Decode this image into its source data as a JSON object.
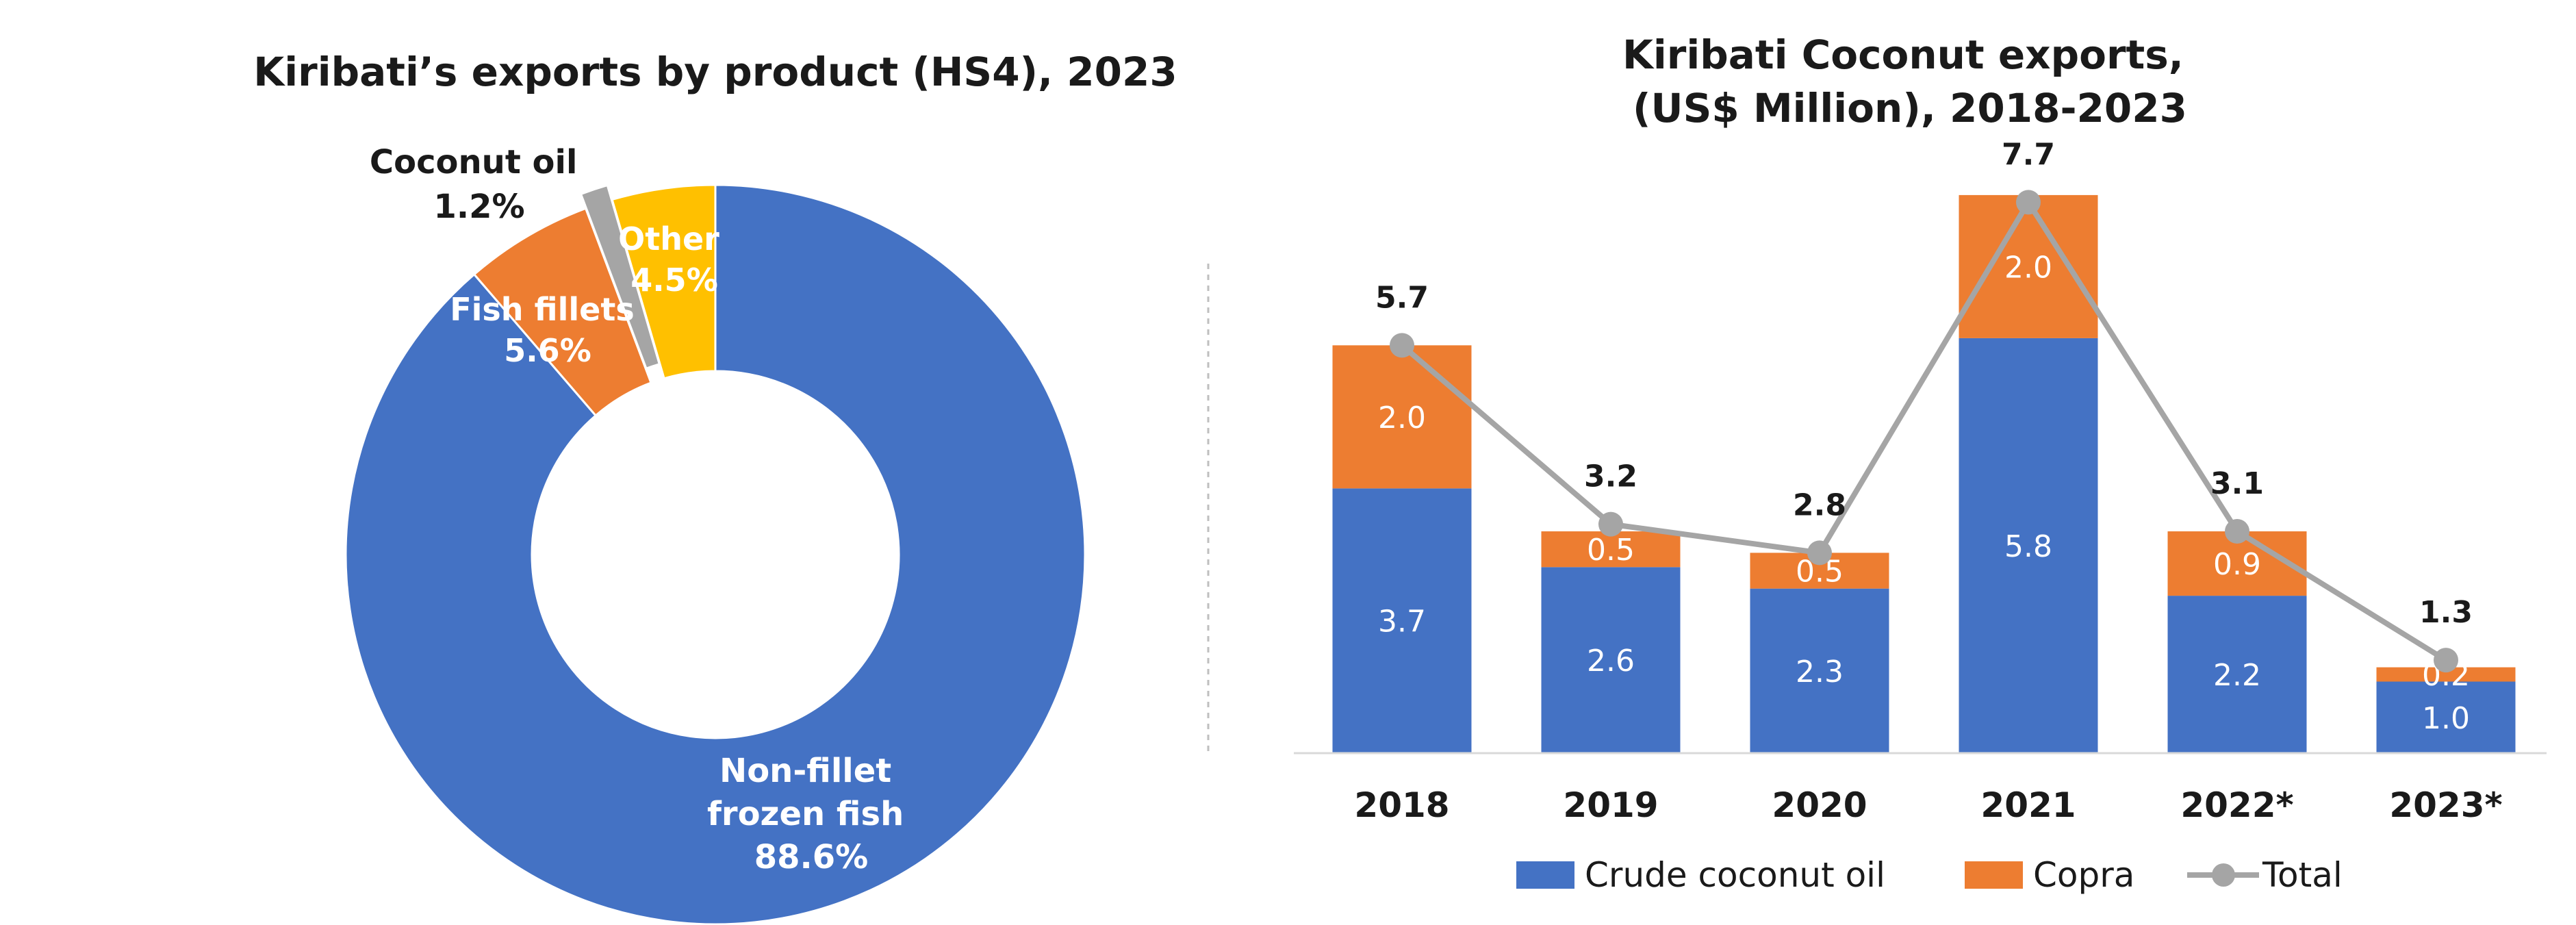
{
  "chart_data": [
    {
      "type": "pie",
      "title": "Kiribati’s exports by product (HS4), 2023",
      "slices": [
        {
          "label": "Non-fillet frozen fish",
          "value": 88.6,
          "value_label": "88.6%",
          "color": "#4472C4"
        },
        {
          "label": "Fish fillets",
          "value": 5.6,
          "value_label": "5.6%",
          "color": "#ED7D31"
        },
        {
          "label": "Coconut oil",
          "value": 1.2,
          "value_label": "1.2%",
          "color": "#A5A5A5"
        },
        {
          "label": "Other",
          "value": 4.5,
          "value_label": "4.5%",
          "color": "#FFC000"
        }
      ]
    },
    {
      "type": "bar",
      "stacked": true,
      "title_lines": [
        "Kiribati Coconut exports,",
        "(US$ Million), 2018-2023"
      ],
      "categories": [
        "2018",
        "2019",
        "2020",
        "2021",
        "2022*",
        "2023*"
      ],
      "series": [
        {
          "name": "Crude coconut oil",
          "color": "#4472C4",
          "values": [
            3.7,
            2.6,
            2.3,
            5.8,
            2.2,
            1.0
          ],
          "labels": [
            "3.7",
            "2.6",
            "2.3",
            "5.8",
            "2.2",
            "1.0"
          ]
        },
        {
          "name": "Copra",
          "color": "#ED7D31",
          "values": [
            2.0,
            0.5,
            0.5,
            2.0,
            0.9,
            0.2
          ],
          "labels": [
            "2.0",
            "0.5",
            "0.5",
            "2.0",
            "0.9",
            "0.2"
          ]
        }
      ],
      "line": {
        "name": "Total",
        "color": "#A5A5A5",
        "values": [
          5.7,
          3.2,
          2.8,
          7.7,
          3.1,
          1.3
        ],
        "labels": [
          "5.7",
          "3.2",
          "2.8",
          "7.7",
          "3.1",
          "1.3"
        ]
      },
      "ylim": [
        0,
        9
      ],
      "legend_position": "bottom",
      "grid": false
    }
  ]
}
